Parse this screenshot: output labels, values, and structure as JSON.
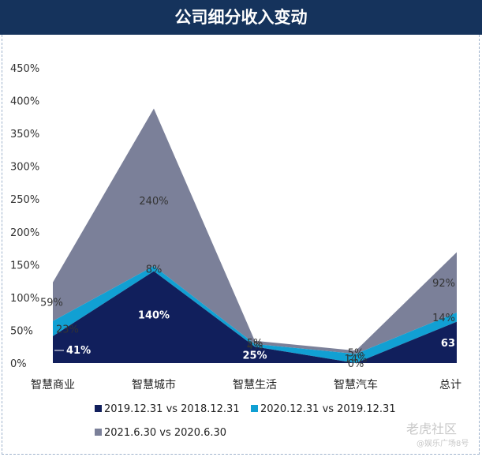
{
  "header": {
    "title": "公司细分收入变动"
  },
  "chart_data": {
    "type": "area",
    "title": "公司细分收入变动",
    "categories": [
      "智慧商业",
      "智慧城市",
      "智慧生活",
      "智慧汽车",
      "总计"
    ],
    "ylim": [
      0,
      450
    ],
    "yticks": [
      "0%",
      "50%",
      "100%",
      "150%",
      "200%",
      "250%",
      "300%",
      "350%",
      "400%",
      "450%"
    ],
    "stacked": true,
    "legend_position": "bottom",
    "series": [
      {
        "name": "2019.12.31 vs 2018.12.31",
        "values": [
          41,
          140,
          25,
          0,
          63
        ],
        "labels": [
          "41%",
          "140%",
          "25%",
          "0%",
          "63"
        ],
        "color": "#111f5c"
      },
      {
        "name": "2020.12.31 vs 2019.12.31",
        "values": [
          23,
          8,
          4,
          14,
          14
        ],
        "labels": [
          "23%",
          "8%",
          "4%",
          "14%",
          "14%"
        ],
        "color": "#11a0d3"
      },
      {
        "name": "2021.6.30 vs 2020.6.30",
        "values": [
          59,
          240,
          5,
          5,
          92
        ],
        "labels": [
          "59%",
          "240%",
          "5%",
          "5%",
          "92%"
        ],
        "color": "#7b8099"
      }
    ]
  },
  "watermark": {
    "main": "老虎社区",
    "sub": "@娱乐广场8号"
  }
}
